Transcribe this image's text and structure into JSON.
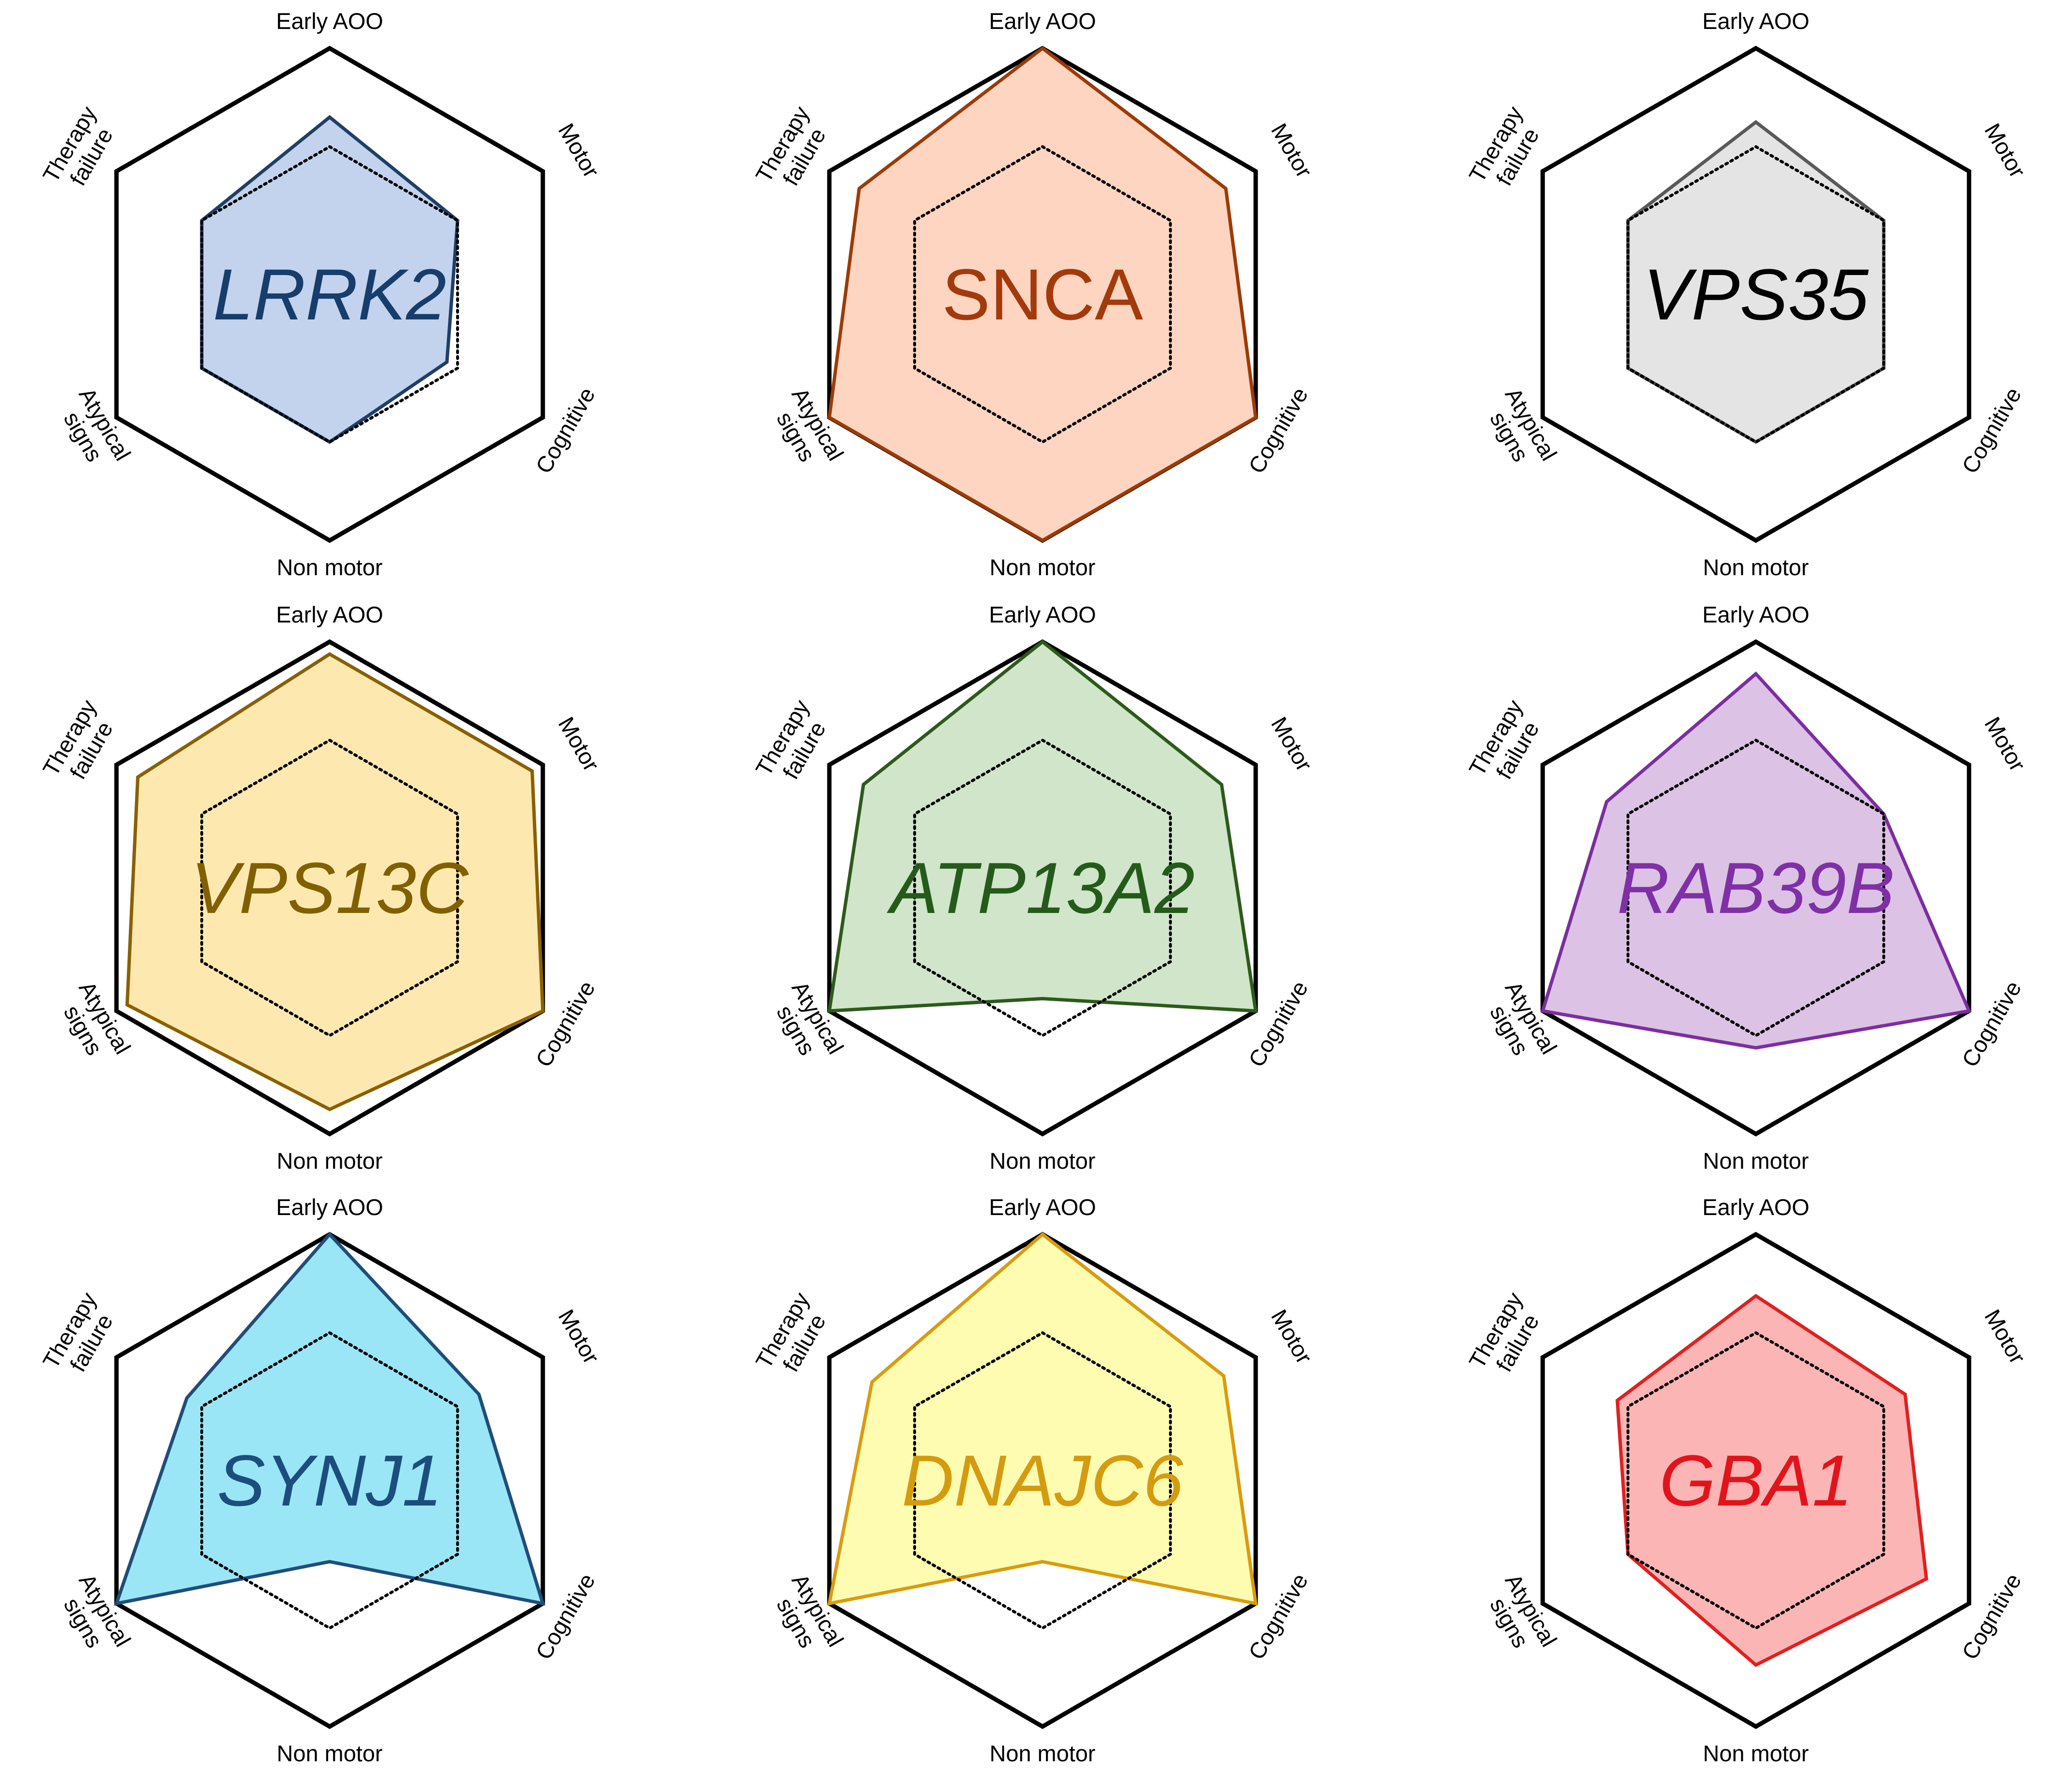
{
  "figure": {
    "axes_labels": [
      "Early AOO",
      "Motor",
      "Cognitive",
      "Non motor",
      "Atypical signs",
      "Therapy failure"
    ],
    "axes_label_lines": [
      [
        "Early AOO"
      ],
      [
        "Motor"
      ],
      [
        "Cognitive"
      ],
      [
        "Non motor"
      ],
      [
        "Atypical",
        "signs"
      ],
      [
        "Therapy",
        "failure"
      ]
    ]
  },
  "chart_data": [
    {
      "type": "radar",
      "title": "LRRK2",
      "title_italic": true,
      "categories": [
        "Early AOO",
        "Motor",
        "Cognitive",
        "Non motor",
        "Atypical signs",
        "Therapy failure"
      ],
      "series": [
        {
          "values": [
            0.72,
            0.6,
            0.55,
            0.6,
            0.6,
            0.6
          ],
          "fill": "#c3d3ed",
          "stroke": "#1f3f66"
        },
        {
          "values": [
            0.6,
            0.6,
            0.6,
            0.6,
            0.6,
            0.6
          ],
          "style": "dotted-reference"
        }
      ],
      "text_color": "#163d6b",
      "rlim": [
        0,
        1
      ]
    },
    {
      "type": "radar",
      "title": "SNCA",
      "title_italic": false,
      "categories": [
        "Early AOO",
        "Motor",
        "Cognitive",
        "Non motor",
        "Atypical signs",
        "Therapy failure"
      ],
      "series": [
        {
          "values": [
            1.0,
            0.86,
            1.0,
            1.0,
            1.0,
            0.86
          ],
          "fill": "#fdd5c0",
          "stroke": "#9c3b06"
        },
        {
          "values": [
            0.6,
            0.6,
            0.6,
            0.6,
            0.6,
            0.6
          ],
          "style": "dotted-reference"
        }
      ],
      "text_color": "#a33a0c",
      "rlim": [
        0,
        1
      ]
    },
    {
      "type": "radar",
      "title": "VPS35",
      "title_italic": true,
      "categories": [
        "Early AOO",
        "Motor",
        "Cognitive",
        "Non motor",
        "Atypical signs",
        "Therapy failure"
      ],
      "series": [
        {
          "values": [
            0.7,
            0.6,
            0.6,
            0.6,
            0.6,
            0.6
          ],
          "fill": "#e4e4e4",
          "stroke": "#595959"
        },
        {
          "values": [
            0.6,
            0.6,
            0.6,
            0.6,
            0.6,
            0.6
          ],
          "style": "dotted-reference"
        }
      ],
      "text_color": "#000000",
      "rlim": [
        0,
        1
      ]
    },
    {
      "type": "radar",
      "title": "VPS13C",
      "title_italic": true,
      "categories": [
        "Early AOO",
        "Motor",
        "Cognitive",
        "Non motor",
        "Atypical signs",
        "Therapy failure"
      ],
      "series": [
        {
          "values": [
            0.95,
            0.95,
            1.0,
            0.9,
            0.95,
            0.9
          ],
          "fill": "#fde9b0",
          "stroke": "#8a6002"
        },
        {
          "values": [
            0.6,
            0.6,
            0.6,
            0.6,
            0.6,
            0.6
          ],
          "style": "dotted-reference"
        }
      ],
      "text_color": "#806000",
      "rlim": [
        0,
        1
      ]
    },
    {
      "type": "radar",
      "title": "ATP13A2",
      "title_italic": true,
      "categories": [
        "Early AOO",
        "Motor",
        "Cognitive",
        "Non motor",
        "Atypical signs",
        "Therapy failure"
      ],
      "series": [
        {
          "values": [
            1.0,
            0.84,
            1.0,
            0.45,
            1.0,
            0.84
          ],
          "fill": "#d0e5c9",
          "stroke": "#2d5a1b"
        },
        {
          "values": [
            0.6,
            0.6,
            0.6,
            0.6,
            0.6,
            0.6
          ],
          "style": "dotted-reference"
        }
      ],
      "text_color": "#245b1b",
      "rlim": [
        0,
        1
      ]
    },
    {
      "type": "radar",
      "title": "RAB39B",
      "title_italic": true,
      "categories": [
        "Early AOO",
        "Motor",
        "Cognitive",
        "Non motor",
        "Atypical signs",
        "Therapy failure"
      ],
      "series": [
        {
          "values": [
            0.87,
            0.6,
            1.0,
            0.65,
            1.0,
            0.7
          ],
          "fill": "#dcc2e4",
          "stroke": "#7b2ea0"
        },
        {
          "values": [
            0.6,
            0.6,
            0.6,
            0.6,
            0.6,
            0.6
          ],
          "style": "dotted-reference"
        }
      ],
      "text_color": "#7f30a7",
      "rlim": [
        0,
        1
      ]
    },
    {
      "type": "radar",
      "title": "SYNJ1",
      "title_italic": true,
      "categories": [
        "Early AOO",
        "Motor",
        "Cognitive",
        "Non motor",
        "Atypical signs",
        "Therapy failure"
      ],
      "series": [
        {
          "values": [
            1.0,
            0.7,
            1.0,
            0.33,
            1.0,
            0.67
          ],
          "fill": "#9ae6f7",
          "stroke": "#1f4e79"
        },
        {
          "values": [
            0.6,
            0.6,
            0.6,
            0.6,
            0.6,
            0.6
          ],
          "style": "dotted-reference"
        }
      ],
      "text_color": "#1c4e7d",
      "rlim": [
        0,
        1
      ]
    },
    {
      "type": "radar",
      "title": "DNAJC6",
      "title_italic": true,
      "categories": [
        "Early AOO",
        "Motor",
        "Cognitive",
        "Non motor",
        "Atypical signs",
        "Therapy failure"
      ],
      "series": [
        {
          "values": [
            1.0,
            0.85,
            1.0,
            0.33,
            1.0,
            0.8
          ],
          "fill": "#fefcb0",
          "stroke": "#d89c10"
        },
        {
          "values": [
            0.6,
            0.6,
            0.6,
            0.6,
            0.6,
            0.6
          ],
          "style": "dotted-reference"
        }
      ],
      "text_color": "#d59b10",
      "rlim": [
        0,
        1
      ]
    },
    {
      "type": "radar",
      "title": "GBA1",
      "title_italic": true,
      "categories": [
        "Early AOO",
        "Motor",
        "Cognitive",
        "Non motor",
        "Atypical signs",
        "Therapy failure"
      ],
      "series": [
        {
          "values": [
            0.75,
            0.7,
            0.8,
            0.75,
            0.6,
            0.65
          ],
          "fill": "#fbb5b5",
          "stroke": "#e02020"
        },
        {
          "values": [
            0.6,
            0.6,
            0.6,
            0.6,
            0.6,
            0.6
          ],
          "style": "dotted-reference"
        }
      ],
      "text_color": "#e2141b",
      "rlim": [
        0,
        1
      ]
    }
  ]
}
